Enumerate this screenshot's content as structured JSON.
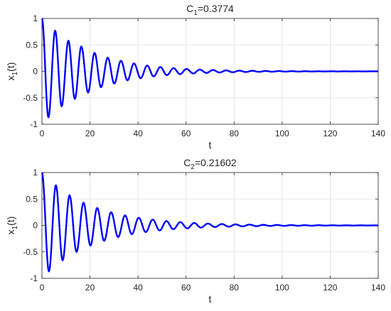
{
  "chart_data": [
    {
      "type": "line",
      "title_main": "C",
      "title_sub": "1",
      "title_rest": "=0.3774",
      "xlabel": "t",
      "ylabel_main": "x",
      "ylabel_sub": "1",
      "ylabel_rest": "(t)",
      "xlim": [
        0,
        140
      ],
      "ylim": [
        -1,
        1
      ],
      "xticks": [
        0,
        20,
        40,
        60,
        80,
        100,
        120,
        140
      ],
      "yticks": [
        -1,
        -0.5,
        0,
        0.5,
        1
      ],
      "ytick_labels": [
        "-1",
        "-0.5",
        "0",
        "0.5",
        "1"
      ],
      "grid": true,
      "line_color": "#0000ff",
      "series": [
        {
          "x": [
            0,
            2.7,
            5.5,
            8.2,
            11.0,
            13.7,
            16.4,
            19.2,
            21.9,
            24.6,
            27.4,
            30.1,
            32.9,
            35.6,
            38.3,
            41.1,
            43.8,
            46.5,
            49.3,
            52.0,
            54.8,
            57.5,
            60.2,
            63.0,
            65.7,
            68.5,
            71.2,
            73.9,
            76.7,
            79.4,
            82.1,
            84.9,
            87.6,
            90.4,
            93.1,
            95.8,
            98.6,
            101.3,
            104.0,
            106.8,
            109.5,
            112.3,
            115.0,
            117.7,
            120.5,
            123.2,
            126.0,
            128.7,
            131.4,
            134.2,
            136.9,
            139.6,
            140
          ],
          "y": [
            1,
            -0.87,
            0.77,
            -0.66,
            0.58,
            -0.52,
            0.47,
            -0.4,
            0.35,
            -0.3,
            0.26,
            -0.23,
            0.2,
            -0.17,
            0.15,
            -0.13,
            0.11,
            -0.095,
            0.082,
            -0.071,
            0.061,
            -0.053,
            0.046,
            -0.04,
            0.034,
            -0.03,
            0.026,
            -0.022,
            0.019,
            -0.017,
            0.014,
            -0.012,
            0.011,
            -0.009,
            0.008,
            -0.007,
            0.006,
            -0.005,
            0.004,
            -0.004,
            0.003,
            -0.003,
            0.002,
            -0.002,
            0.002,
            -0.002,
            0.001,
            -0.001,
            0.001,
            -0.001,
            0.001,
            0,
            0
          ]
        }
      ]
    },
    {
      "type": "line",
      "title_main": "C",
      "title_sub": "2",
      "title_rest": "=0.21602",
      "xlabel": "t",
      "ylabel_main": "x",
      "ylabel_sub": "1",
      "ylabel_rest": "(t)",
      "xlim": [
        0,
        140
      ],
      "ylim": [
        -1,
        1
      ],
      "xticks": [
        0,
        20,
        40,
        60,
        80,
        100,
        120,
        140
      ],
      "yticks": [
        -1,
        -0.5,
        0,
        0.5,
        1
      ],
      "ytick_labels": [
        "-1",
        "-0.5",
        "0",
        "0.5",
        "1"
      ],
      "grid": true,
      "line_color": "#0000ff",
      "series": [
        {
          "x": [
            0,
            2.9,
            5.8,
            8.6,
            11.5,
            14.4,
            17.3,
            20.2,
            23.0,
            25.9,
            28.8,
            31.7,
            34.6,
            37.4,
            40.3,
            43.2,
            46.1,
            49.0,
            51.8,
            54.7,
            57.6,
            60.5,
            63.4,
            66.2,
            69.1,
            72.0,
            74.9,
            77.8,
            80.6,
            83.5,
            86.4,
            89.3,
            92.2,
            95.0,
            97.9,
            100.8,
            103.7,
            106.6,
            109.4,
            112.3,
            115.2,
            118.1,
            121.0,
            123.8,
            126.7,
            129.6,
            132.5,
            135.4,
            138.2,
            140
          ],
          "y": [
            1,
            -0.87,
            0.76,
            -0.66,
            0.57,
            -0.5,
            0.43,
            -0.38,
            0.33,
            -0.29,
            0.25,
            -0.22,
            0.19,
            -0.165,
            0.145,
            -0.125,
            0.11,
            -0.095,
            0.083,
            -0.072,
            0.063,
            -0.055,
            0.047,
            -0.041,
            0.036,
            -0.031,
            0.027,
            -0.024,
            0.021,
            -0.018,
            0.016,
            -0.014,
            0.012,
            -0.01,
            0.009,
            -0.008,
            0.007,
            -0.006,
            0.005,
            -0.005,
            0.004,
            -0.003,
            0.003,
            -0.003,
            0.002,
            -0.002,
            0.002,
            -0.001,
            0.001,
            0
          ]
        }
      ]
    }
  ]
}
